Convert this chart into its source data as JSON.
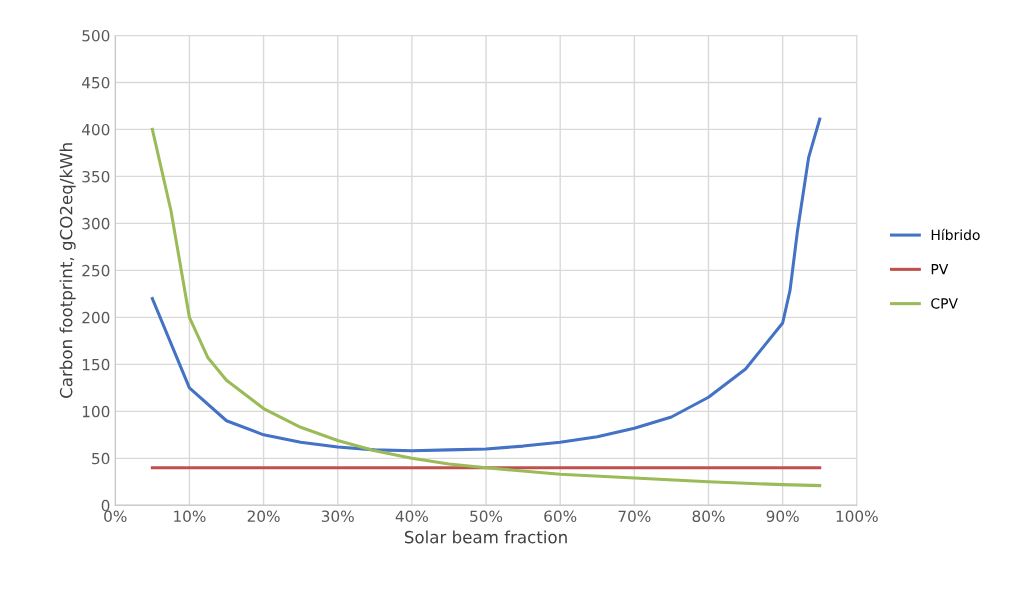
{
  "chart_data": {
    "type": "line",
    "xlabel": "Solar beam fraction",
    "ylabel": "Carbon footprint, gCO2eq/kWh",
    "xlim": [
      0,
      100
    ],
    "ylim": [
      0,
      500
    ],
    "xticks": [
      {
        "value": 0,
        "label": "0%"
      },
      {
        "value": 10,
        "label": "10%"
      },
      {
        "value": 20,
        "label": "20%"
      },
      {
        "value": 30,
        "label": "30%"
      },
      {
        "value": 40,
        "label": "40%"
      },
      {
        "value": 50,
        "label": "50%"
      },
      {
        "value": 60,
        "label": "60%"
      },
      {
        "value": 70,
        "label": "70%"
      },
      {
        "value": 80,
        "label": "80%"
      },
      {
        "value": 90,
        "label": "90%"
      },
      {
        "value": 100,
        "label": "100%"
      }
    ],
    "yticks": [
      0,
      50,
      100,
      150,
      200,
      250,
      300,
      350,
      400,
      450,
      500
    ],
    "grid": true,
    "legend": "right",
    "marker": "none",
    "line_style": "solid",
    "series": [
      {
        "name": "Híbrido",
        "color": "#4472c4",
        "x": [
          5,
          10,
          15,
          20,
          25,
          30,
          35,
          40,
          45,
          50,
          55,
          60,
          65,
          70,
          75,
          80,
          85,
          90,
          91,
          92,
          93.5,
          95
        ],
        "values": [
          220,
          125,
          90,
          75,
          67,
          62,
          59,
          58,
          59,
          60,
          63,
          67,
          73,
          82,
          94,
          115,
          145,
          194,
          229,
          292,
          370,
          411
        ]
      },
      {
        "name": "PV",
        "color": "#c0504d",
        "x": [
          5,
          95
        ],
        "values": [
          40,
          40
        ]
      },
      {
        "name": "CPV",
        "color": "#9bbb59",
        "x": [
          5,
          7.5,
          10,
          12.5,
          15,
          20,
          25,
          30,
          35,
          40,
          45,
          50,
          60,
          70,
          80,
          90,
          95
        ],
        "values": [
          400,
          314,
          200,
          157,
          133,
          103,
          83,
          69,
          58,
          50,
          44,
          40,
          33,
          29,
          25,
          22,
          21
        ]
      }
    ]
  }
}
